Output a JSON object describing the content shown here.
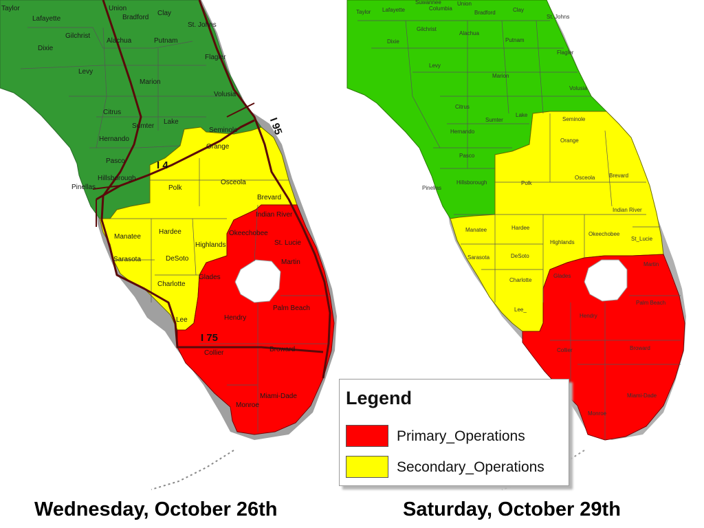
{
  "maps": [
    {
      "caption": "Wednesday, October 26th",
      "counties": {
        "taylor": "Taylor",
        "lafayette": "Lafayette",
        "union": "Union",
        "bradford": "Bradford",
        "clay": "Clay",
        "st_johns": "St. Johns",
        "gilchrist": "Gilchrist",
        "alachua": "Alachua",
        "putnam": "Putnam",
        "dixie": "Dixie",
        "flagler": "Flagler",
        "levy": "Levy",
        "marion": "Marion",
        "volusia": "Volusia",
        "citrus": "Citrus",
        "sumter": "Sumter",
        "lake": "Lake",
        "seminole": "Seminole",
        "hernando": "Hernando",
        "orange": "Orange",
        "pasco": "Pasco",
        "hillsborough": "Hillsborough",
        "pinellas": "Pinellas",
        "polk": "Polk",
        "osceola": "Osceola",
        "brevard": "Brevard",
        "indian_river": "Indian River",
        "manatee": "Manatee",
        "hardee": "Hardee",
        "okeechobee": "Okeechobee",
        "st_lucie": "St. Lucie",
        "highlands": "Highlands",
        "sarasota": "Sarasota",
        "desoto": "DeSoto",
        "martin": "Martin",
        "glades": "Glades",
        "charlotte": "Charlotte",
        "palm_beach": "Palm Beach",
        "hendry": "Hendry",
        "lee": "Lee",
        "collier": "Collier",
        "broward": "Broward",
        "miami_dade": "Miami-Dade",
        "monroe": "Monroe"
      },
      "highways": {
        "i4": "I 4",
        "i95": "I 95",
        "i75": "I 75"
      }
    },
    {
      "caption": "Saturday, October 29th",
      "counties": {
        "taylor": "Taylor",
        "lafayette": "Lafayette",
        "suwannee": "Suwannee",
        "columbia": "Columbia",
        "union": "Union",
        "bradford": "Bradford",
        "clay": "Clay",
        "st_johns": "St. Johns",
        "gilchrist": "Gilchrist",
        "alachua": "Alachua",
        "putnam": "Putnam",
        "dixie": "Dixie",
        "flagler": "Flagler",
        "levy": "Levy",
        "marion": "Marion",
        "volusia": "Volusia",
        "citrus": "Citrus",
        "sumter": "Sumter",
        "lake": "Lake",
        "seminole": "Seminole",
        "hernando": "Hernando",
        "orange": "Orange",
        "pasco": "Pasco",
        "hillsborough": "Hillsborough",
        "pinellas": "Pinellas",
        "polk": "Polk",
        "osceola": "Osceola",
        "brevard": "Brevard",
        "indian_river": "Indian River",
        "manatee": "Manatee",
        "hardee": "Hardee",
        "okeechobee": "Okeechobee",
        "st_lucie": "St_Lucie",
        "highlands": "Highlands",
        "sarasota": "Sarasota",
        "desoto": "DeSoto",
        "martin": "Martin",
        "glades": "Glades",
        "charlotte": "Charlotte",
        "palm_beach": "Palm Beach",
        "hendry": "Hendry",
        "lee": "Lee_",
        "collier": "Collier",
        "broward": "Broward",
        "miami_dade": "Miami-Dade",
        "monroe": "Monroe"
      }
    }
  ],
  "legend": {
    "title": "Legend",
    "items": [
      {
        "label": "Primary_Operations",
        "color": "#ff0000"
      },
      {
        "label": "Secondary_Operations",
        "color": "#ffff00"
      }
    ]
  },
  "colors": {
    "map1_north": "#339933",
    "map2_north": "#33cc00",
    "secondary": "#ffff00",
    "primary": "#ff0000",
    "county_border": "#555555",
    "highway": "#5a0a0a",
    "lake": "#ffffff",
    "coast_shadow": "#9a9a9a"
  }
}
